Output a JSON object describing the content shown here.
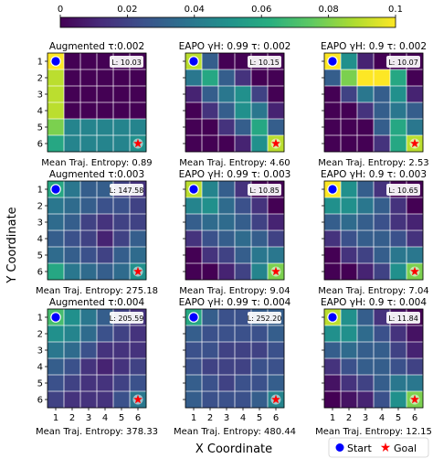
{
  "figure": {
    "xlabel": "X Coordinate",
    "ylabel": "Y Coordinate",
    "legend": {
      "start": "Start",
      "goal": "Goal"
    }
  },
  "colorbar": {
    "min": 0,
    "max": 0.1,
    "ticks": [
      "0",
      "0.02",
      "0.04",
      "0.06",
      "0.08",
      "0.1"
    ]
  },
  "chart_data": [
    {
      "type": "heatmap",
      "title": "Augmented τ:0.002",
      "x_ticks": [
        "1",
        "2",
        "3",
        "4",
        "5",
        "6"
      ],
      "y_ticks": [
        "1",
        "2",
        "3",
        "4",
        "5",
        "6"
      ],
      "length_label": "L: 10.03",
      "entropy_label": "Mean Traj. Entropy: 0.89",
      "values": [
        [
          0.1,
          0.0,
          0.0,
          0.0,
          0.0,
          0.0
        ],
        [
          0.09,
          0.0,
          0.0,
          0.0,
          0.0,
          0.0
        ],
        [
          0.09,
          0.0,
          0.0,
          0.0,
          0.0,
          0.0
        ],
        [
          0.09,
          0.0,
          0.0,
          0.0,
          0.0,
          0.0
        ],
        [
          0.08,
          0.045,
          0.045,
          0.045,
          0.045,
          0.045
        ],
        [
          0.06,
          0.045,
          0.045,
          0.045,
          0.045,
          0.05
        ]
      ]
    },
    {
      "type": "heatmap",
      "title": "EAPO γH: 0.99 τ: 0.002",
      "x_ticks": [
        "1",
        "2",
        "3",
        "4",
        "5",
        "6"
      ],
      "y_ticks": [
        "1",
        "2",
        "3",
        "4",
        "5",
        "6"
      ],
      "length_label": "L: 10.15",
      "entropy_label": "Mean Traj. Entropy: 4.60",
      "values": [
        [
          0.09,
          0.03,
          0.0,
          0.0,
          0.0,
          0.0
        ],
        [
          0.04,
          0.06,
          0.03,
          0.015,
          0.0,
          0.0
        ],
        [
          0.01,
          0.03,
          0.04,
          0.05,
          0.02,
          0.0
        ],
        [
          0.0,
          0.015,
          0.03,
          0.05,
          0.04,
          0.01
        ],
        [
          0.0,
          0.0,
          0.015,
          0.03,
          0.06,
          0.03
        ],
        [
          0.0,
          0.0,
          0.0,
          0.01,
          0.05,
          0.09
        ]
      ]
    },
    {
      "type": "heatmap",
      "title": "EAPO γH: 0.9 τ: 0.002",
      "x_ticks": [
        "1",
        "2",
        "3",
        "4",
        "5",
        "6"
      ],
      "y_ticks": [
        "1",
        "2",
        "3",
        "4",
        "5",
        "6"
      ],
      "length_label": "L: 10.07",
      "entropy_label": "Mean Traj. Entropy: 2.53",
      "values": [
        [
          0.1,
          0.05,
          0.01,
          0.0,
          0.0,
          0.0
        ],
        [
          0.03,
          0.08,
          0.1,
          0.1,
          0.06,
          0.0
        ],
        [
          0.0,
          0.02,
          0.04,
          0.03,
          0.05,
          0.01
        ],
        [
          0.0,
          0.0,
          0.015,
          0.03,
          0.04,
          0.03
        ],
        [
          0.0,
          0.0,
          0.0,
          0.03,
          0.06,
          0.04
        ],
        [
          0.0,
          0.0,
          0.0,
          0.015,
          0.06,
          0.09
        ]
      ]
    },
    {
      "type": "heatmap",
      "title": "Augmented τ:0.003",
      "x_ticks": [
        "1",
        "2",
        "3",
        "4",
        "5",
        "6"
      ],
      "y_ticks": [
        "1",
        "2",
        "3",
        "4",
        "5",
        "6"
      ],
      "length_label": "L: 147.58",
      "entropy_label": "Mean Traj. Entropy: 275.18",
      "values": [
        [
          0.06,
          0.04,
          0.03,
          0.03,
          0.02,
          0.015
        ],
        [
          0.04,
          0.035,
          0.03,
          0.025,
          0.025,
          0.02
        ],
        [
          0.035,
          0.03,
          0.02,
          0.015,
          0.02,
          0.02
        ],
        [
          0.03,
          0.025,
          0.02,
          0.01,
          0.02,
          0.03
        ],
        [
          0.035,
          0.03,
          0.025,
          0.02,
          0.03,
          0.035
        ],
        [
          0.06,
          0.04,
          0.035,
          0.03,
          0.035,
          0.05
        ]
      ]
    },
    {
      "type": "heatmap",
      "title": "EAPO γH: 0.99 τ: 0.003",
      "x_ticks": [
        "1",
        "2",
        "3",
        "4",
        "5",
        "6"
      ],
      "y_ticks": [
        "1",
        "2",
        "3",
        "4",
        "5",
        "6"
      ],
      "length_label": "L: 10.85",
      "entropy_label": "Mean Traj. Entropy: 9.04",
      "values": [
        [
          0.09,
          0.045,
          0.03,
          0.015,
          0.0,
          0.0
        ],
        [
          0.045,
          0.05,
          0.035,
          0.025,
          0.015,
          0.0
        ],
        [
          0.03,
          0.035,
          0.035,
          0.03,
          0.02,
          0.01
        ],
        [
          0.015,
          0.025,
          0.03,
          0.035,
          0.03,
          0.02
        ],
        [
          0.0,
          0.015,
          0.02,
          0.03,
          0.04,
          0.04
        ],
        [
          0.0,
          0.0,
          0.01,
          0.02,
          0.045,
          0.08
        ]
      ]
    },
    {
      "type": "heatmap",
      "title": "EAPO γH: 0.9 τ: 0.003",
      "x_ticks": [
        "1",
        "2",
        "3",
        "4",
        "5",
        "6"
      ],
      "y_ticks": [
        "1",
        "2",
        "3",
        "4",
        "5",
        "6"
      ],
      "length_label": "L: 10.65",
      "entropy_label": "Mean Traj. Entropy: 7.04",
      "values": [
        [
          0.1,
          0.05,
          0.03,
          0.015,
          0.0,
          0.0
        ],
        [
          0.05,
          0.05,
          0.04,
          0.03,
          0.015,
          0.0
        ],
        [
          0.03,
          0.035,
          0.03,
          0.025,
          0.015,
          0.01
        ],
        [
          0.015,
          0.025,
          0.03,
          0.03,
          0.025,
          0.015
        ],
        [
          0.0,
          0.015,
          0.02,
          0.03,
          0.04,
          0.04
        ],
        [
          0.0,
          0.0,
          0.01,
          0.02,
          0.05,
          0.08
        ]
      ]
    },
    {
      "type": "heatmap",
      "title": "Augmented τ:0.004",
      "x_ticks": [
        "1",
        "2",
        "3",
        "4",
        "5",
        "6"
      ],
      "y_ticks": [
        "1",
        "2",
        "3",
        "4",
        "5",
        "6"
      ],
      "length_label": "L: 205.59",
      "entropy_label": "Mean Traj. Entropy: 378.33",
      "values": [
        [
          0.07,
          0.05,
          0.04,
          0.03,
          0.02,
          0.015
        ],
        [
          0.05,
          0.045,
          0.035,
          0.025,
          0.02,
          0.015
        ],
        [
          0.04,
          0.035,
          0.025,
          0.015,
          0.015,
          0.015
        ],
        [
          0.03,
          0.025,
          0.015,
          0.01,
          0.015,
          0.02
        ],
        [
          0.025,
          0.02,
          0.015,
          0.015,
          0.02,
          0.025
        ],
        [
          0.02,
          0.015,
          0.015,
          0.015,
          0.025,
          0.04
        ]
      ]
    },
    {
      "type": "heatmap",
      "title": "EAPO γH: 0.99 τ: 0.004",
      "x_ticks": [
        "1",
        "2",
        "3",
        "4",
        "5",
        "6"
      ],
      "y_ticks": [
        "1",
        "2",
        "3",
        "4",
        "5",
        "6"
      ],
      "length_label": "L: 252.20",
      "entropy_label": "Mean Traj. Entropy: 480.44",
      "values": [
        [
          0.06,
          0.03,
          0.025,
          0.025,
          0.03,
          0.03
        ],
        [
          0.03,
          0.025,
          0.025,
          0.025,
          0.025,
          0.03
        ],
        [
          0.025,
          0.025,
          0.02,
          0.02,
          0.02,
          0.025
        ],
        [
          0.025,
          0.02,
          0.02,
          0.02,
          0.025,
          0.025
        ],
        [
          0.03,
          0.025,
          0.02,
          0.025,
          0.025,
          0.03
        ],
        [
          0.03,
          0.025,
          0.025,
          0.025,
          0.03,
          0.045
        ]
      ]
    },
    {
      "type": "heatmap",
      "title": "EAPO γH: 0.9 τ: 0.004",
      "x_ticks": [
        "1",
        "2",
        "3",
        "4",
        "5",
        "6"
      ],
      "y_ticks": [
        "1",
        "2",
        "3",
        "4",
        "5",
        "6"
      ],
      "length_label": "L: 11.84",
      "entropy_label": "Mean Traj. Entropy: 12.15",
      "values": [
        [
          0.09,
          0.05,
          0.03,
          0.015,
          0.005,
          0.0
        ],
        [
          0.05,
          0.05,
          0.035,
          0.025,
          0.015,
          0.005
        ],
        [
          0.03,
          0.035,
          0.03,
          0.03,
          0.02,
          0.01
        ],
        [
          0.015,
          0.025,
          0.03,
          0.03,
          0.025,
          0.02
        ],
        [
          0.005,
          0.015,
          0.02,
          0.03,
          0.04,
          0.04
        ],
        [
          0.0,
          0.005,
          0.01,
          0.025,
          0.05,
          0.08
        ]
      ]
    }
  ]
}
